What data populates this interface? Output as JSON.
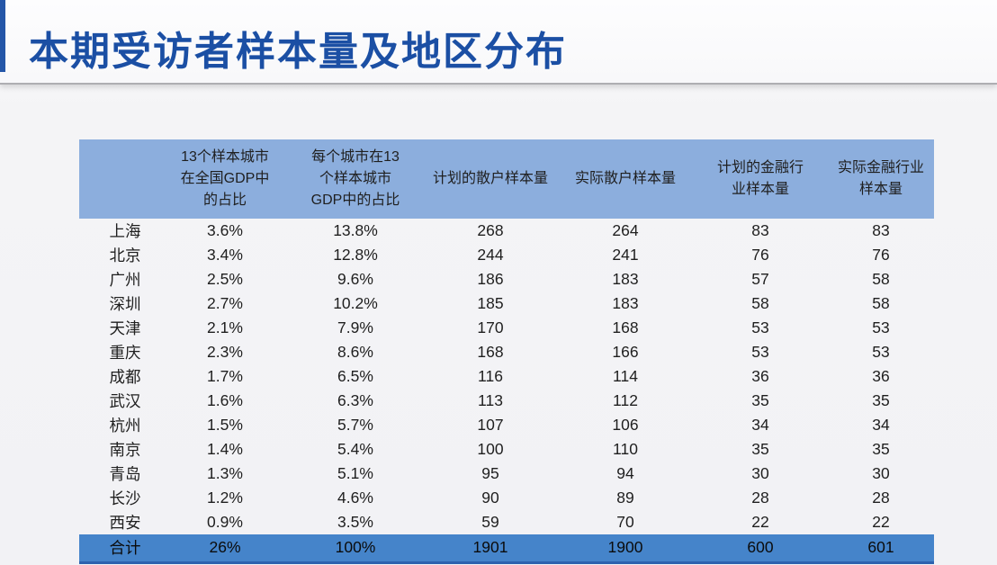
{
  "slide": {
    "title": "本期受访者样本量及地区分布"
  },
  "colors": {
    "title_text": "#1b4fa4",
    "accent_bar": "#2456a8",
    "table_header_bg": "#8caedd",
    "total_row_bg": "#4584ca",
    "table_bottom_border": "#2d62ae",
    "divider_line": "#aeaeb2"
  },
  "chart_data": {
    "type": "table",
    "title": "本期受访者样本量及地区分布",
    "columns": [
      "",
      "13个样本城市\n在全国GDP中\n的占比",
      "每个城市在13\n个样本城市\nGDP中的占比",
      "计划的散户样本量",
      "实际散户样本量",
      "计划的金融行\n业样本量",
      "实际金融行业\n样本量"
    ],
    "rows": [
      [
        "上海",
        "3.6%",
        "13.8%",
        "268",
        "264",
        "83",
        "83"
      ],
      [
        "北京",
        "3.4%",
        "12.8%",
        "244",
        "241",
        "76",
        "76"
      ],
      [
        "广州",
        "2.5%",
        "9.6%",
        "186",
        "183",
        "57",
        "58"
      ],
      [
        "深圳",
        "2.7%",
        "10.2%",
        "185",
        "183",
        "58",
        "58"
      ],
      [
        "天津",
        "2.1%",
        "7.9%",
        "170",
        "168",
        "53",
        "53"
      ],
      [
        "重庆",
        "2.3%",
        "8.6%",
        "168",
        "166",
        "53",
        "53"
      ],
      [
        "成都",
        "1.7%",
        "6.5%",
        "116",
        "114",
        "36",
        "36"
      ],
      [
        "武汉",
        "1.6%",
        "6.3%",
        "113",
        "112",
        "35",
        "35"
      ],
      [
        "杭州",
        "1.5%",
        "5.7%",
        "107",
        "106",
        "34",
        "34"
      ],
      [
        "南京",
        "1.4%",
        "5.4%",
        "100",
        "110",
        "35",
        "35"
      ],
      [
        "青岛",
        "1.3%",
        "5.1%",
        "95",
        "94",
        "30",
        "30"
      ],
      [
        "长沙",
        "1.2%",
        "4.6%",
        "90",
        "89",
        "28",
        "28"
      ],
      [
        "西安",
        "0.9%",
        "3.5%",
        "59",
        "70",
        "22",
        "22"
      ]
    ],
    "total_row": [
      "合计",
      "26%",
      "100%",
      "1901",
      "1900",
      "600",
      "601"
    ]
  }
}
